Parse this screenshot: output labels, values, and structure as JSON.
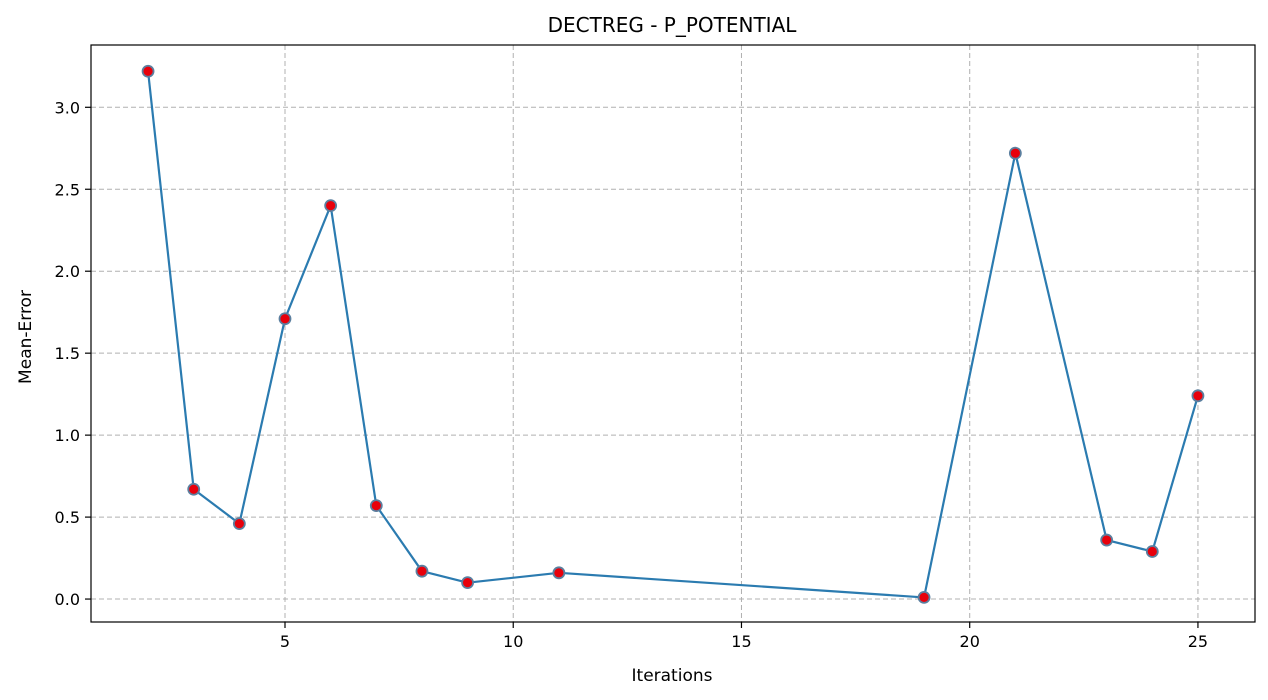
{
  "chart_data": {
    "type": "line",
    "title": "DECTREG - P_POTENTIAL",
    "xlabel": "Iterations",
    "ylabel": "Mean-Error",
    "xlim": [
      0.75,
      26.25
    ],
    "ylim": [
      -0.14,
      3.38
    ],
    "xticks": [
      5,
      10,
      15,
      20,
      25
    ],
    "xtick_labels": [
      "5",
      "10",
      "15",
      "20",
      "25"
    ],
    "yticks": [
      0.0,
      0.5,
      1.0,
      1.5,
      2.0,
      2.5,
      3.0
    ],
    "ytick_labels": [
      "0.0",
      "0.5",
      "1.0",
      "1.5",
      "2.0",
      "2.5",
      "3.0"
    ],
    "grid": true,
    "series": [
      {
        "x": [
          2,
          3,
          4,
          5,
          6,
          7,
          8,
          9,
          11,
          19,
          21,
          23,
          24,
          25
        ],
        "y": [
          3.22,
          0.67,
          0.46,
          1.71,
          2.4,
          0.57,
          0.17,
          0.1,
          0.16,
          0.01,
          2.72,
          0.36,
          0.29,
          1.24
        ],
        "line_color": "#2b7bb0",
        "marker_fill": "#e8000b",
        "marker_edge": "#5b7f9f"
      }
    ]
  }
}
